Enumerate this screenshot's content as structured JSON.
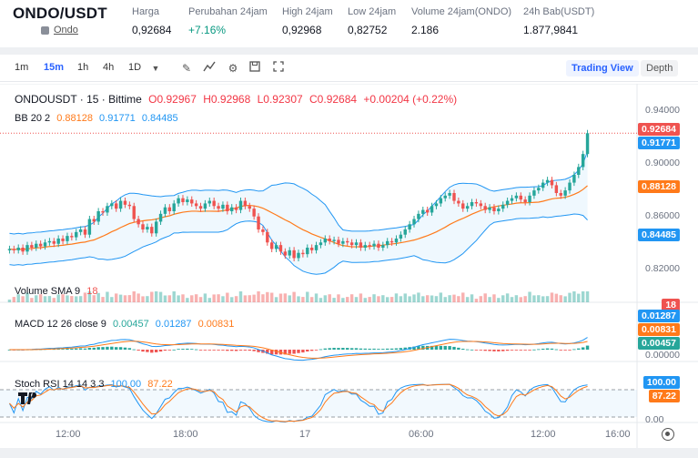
{
  "header": {
    "pair": "ONDO/USDT",
    "coin_name": "Ondo",
    "stats": [
      {
        "label": "Harga",
        "value": "0,92684",
        "positive": false
      },
      {
        "label": "Perubahan 24jam",
        "value": "+7.16%",
        "positive": true
      },
      {
        "label": "High 24jam",
        "value": "0,92968",
        "positive": false
      },
      {
        "label": "Low 24jam",
        "value": "0,82752",
        "positive": false
      },
      {
        "label": "Volume 24jam(ONDO)",
        "value": "2.186",
        "positive": false
      },
      {
        "label": "24h Bab(USDT)",
        "value": "1.877,9841",
        "positive": false
      }
    ]
  },
  "toolbar": {
    "timeframes": [
      "1m",
      "15m",
      "1h",
      "4h",
      "1D"
    ],
    "active_timeframe": "15m",
    "icons": [
      "dropdown-caret-icon",
      "draw-pencil-icon",
      "indicators-icon",
      "settings-gear-icon",
      "save-icon",
      "fullscreen-icon"
    ],
    "views": [
      "Trading View",
      "Depth"
    ]
  },
  "legend": {
    "symbol": "ONDOUSDT · 15 · Bittime",
    "o": "O0.92967",
    "h": "H0.92968",
    "l": "L0.92307",
    "c": "C0.92684",
    "chg": "+0.00204 (+0.22%)",
    "bb_label": "BB 20 2",
    "bb_mid": "0.88128",
    "bb_up": "0.91771",
    "bb_low": "0.84485",
    "vol_label": "Volume SMA 9",
    "vol_val": "18",
    "macd_label": "MACD 12 26 close 9",
    "macd_hist": "0.00457",
    "macd_line": "0.01287",
    "macd_signal": "0.00831",
    "stoch_label": "Stoch RSI 14 14 3 3",
    "stoch_k": "100.00",
    "stoch_d": "87.22"
  },
  "axis": {
    "price_ticks": [
      "0.94000",
      "0.90000",
      "0.86000",
      "0.82000"
    ],
    "price_tags": {
      "last": "0.92684",
      "upper": "0.91771",
      "mid": "0.88128",
      "lower": "0.84485"
    },
    "vol_tag": "18",
    "macd_tags": {
      "line": "0.01287",
      "signal": "0.00831",
      "hist": "0.00457",
      "zero": "0.00000"
    },
    "stoch_ticks": [
      "100.00",
      "87.22",
      "0.00"
    ],
    "time_ticks": [
      "12:00",
      "18:00",
      "17",
      "06:00",
      "12:00",
      "16:00"
    ]
  },
  "colors": {
    "up": "#26a69a",
    "down": "#ef5350",
    "bb_band": "#2196f3",
    "bb_mid": "#ff7a1a",
    "macd_line": "#2196f3",
    "signal": "#ff7a1a",
    "accent": "#2962ff"
  },
  "chart_data": {
    "type": "candlestick",
    "symbol": "ONDOUSDT",
    "interval": "15",
    "ylim": [
      0.81,
      0.95
    ],
    "close_series": [
      0.837,
      0.836,
      0.838,
      0.835,
      0.84,
      0.838,
      0.841,
      0.839,
      0.842,
      0.843,
      0.841,
      0.845,
      0.843,
      0.847,
      0.846,
      0.85,
      0.852,
      0.848,
      0.86,
      0.858,
      0.866,
      0.865,
      0.87,
      0.872,
      0.868,
      0.874,
      0.871,
      0.87,
      0.86,
      0.856,
      0.852,
      0.854,
      0.849,
      0.858,
      0.864,
      0.869,
      0.866,
      0.872,
      0.876,
      0.873,
      0.875,
      0.872,
      0.87,
      0.868,
      0.872,
      0.874,
      0.87,
      0.868,
      0.871,
      0.866,
      0.869,
      0.867,
      0.874,
      0.87,
      0.868,
      0.862,
      0.852,
      0.85,
      0.842,
      0.837,
      0.84,
      0.835,
      0.832,
      0.836,
      0.83,
      0.834,
      0.833,
      0.838,
      0.836,
      0.84,
      0.842,
      0.845,
      0.843,
      0.844,
      0.841,
      0.843,
      0.842,
      0.84,
      0.842,
      0.838,
      0.84,
      0.839,
      0.841,
      0.838,
      0.84,
      0.843,
      0.842,
      0.845,
      0.848,
      0.852,
      0.856,
      0.86,
      0.864,
      0.867,
      0.865,
      0.87,
      0.872,
      0.876,
      0.878,
      0.88,
      0.874,
      0.872,
      0.868,
      0.87,
      0.873,
      0.872,
      0.87,
      0.867,
      0.869,
      0.866,
      0.868,
      0.871,
      0.874,
      0.876,
      0.878,
      0.875,
      0.873,
      0.878,
      0.882,
      0.884,
      0.888,
      0.89,
      0.886,
      0.88,
      0.878,
      0.882,
      0.888,
      0.894,
      0.9,
      0.91,
      0.926
    ]
  }
}
